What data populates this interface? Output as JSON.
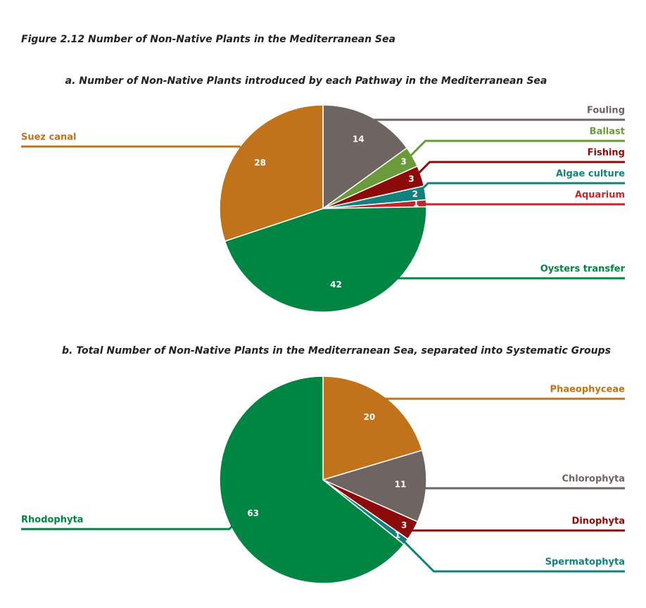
{
  "title": "Figure 2.12   Number of Non-Native Plants in the Mediterranean Sea",
  "chart_data": [
    {
      "type": "pie",
      "title": "a. Number of Non-Native Plants introduced by each Pathway in the Mediterranean Sea",
      "categories": [
        "Fouling",
        "Ballast",
        "Fishing",
        "Algae culture",
        "Aquarium",
        "Oysters transfer",
        "Suez canal"
      ],
      "values": [
        14,
        3,
        3,
        2,
        1,
        42,
        28
      ],
      "colors": [
        "#6e6462",
        "#6a9a3a",
        "#8b0a0a",
        "#12817d",
        "#c0272d",
        "#008542",
        "#c0731b"
      ]
    },
    {
      "type": "pie",
      "title": "b. Total Number of Non-Native Plants in the Mediterranean Sea, separated into Systematic Groups",
      "categories": [
        "Phaeophyceae",
        "Chlorophyta",
        "Dinophyta",
        "Spermatophyta",
        "Rhodophyta"
      ],
      "values": [
        20,
        11,
        3,
        1,
        63
      ],
      "colors": [
        "#c0731b",
        "#6e6462",
        "#8b0a0a",
        "#12817d",
        "#008542"
      ]
    }
  ]
}
